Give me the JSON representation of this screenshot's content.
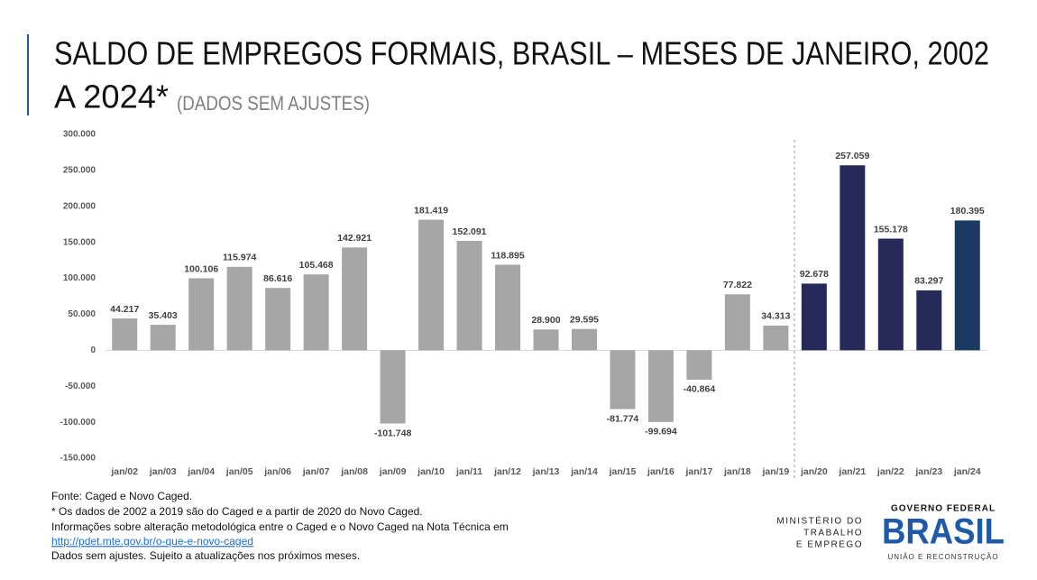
{
  "chart_data": {
    "type": "bar",
    "title": "SALDO DE EMPREGOS FORMAIS, BRASIL – MESES DE JANEIRO, 2002",
    "title_line2": "A 2024*",
    "subtitle": "(DADOS SEM AJUSTES)",
    "categories": [
      "jan/02",
      "jan/03",
      "jan/04",
      "jan/05",
      "jan/06",
      "jan/07",
      "jan/08",
      "jan/09",
      "jan/10",
      "jan/11",
      "jan/12",
      "jan/13",
      "jan/14",
      "jan/15",
      "jan/16",
      "jan/17",
      "jan/18",
      "jan/19",
      "jan/20",
      "jan/21",
      "jan/22",
      "jan/23",
      "jan/24"
    ],
    "values": [
      44217,
      35403,
      100106,
      115974,
      86616,
      105468,
      142921,
      -101748,
      181419,
      152091,
      118895,
      28900,
      29595,
      -81774,
      -99694,
      -40864,
      77822,
      34313,
      92678,
      257059,
      155178,
      83297,
      180395
    ],
    "value_labels": [
      "44.217",
      "35.403",
      "100.106",
      "115.974",
      "86.616",
      "105.468",
      "142.921",
      "-101.748",
      "181.419",
      "152.091",
      "118.895",
      "28.900",
      "29.595",
      "-81.774",
      "-99.694",
      "-40.864",
      "77.822",
      "34.313",
      "92.678",
      "257.059",
      "155.178",
      "83.297",
      "180.395"
    ],
    "colors": [
      "#a6a6a6",
      "#a6a6a6",
      "#a6a6a6",
      "#a6a6a6",
      "#a6a6a6",
      "#a6a6a6",
      "#a6a6a6",
      "#a6a6a6",
      "#a6a6a6",
      "#a6a6a6",
      "#a6a6a6",
      "#a6a6a6",
      "#a6a6a6",
      "#a6a6a6",
      "#a6a6a6",
      "#a6a6a6",
      "#a6a6a6",
      "#a6a6a6",
      "#252a5a",
      "#252a5a",
      "#252a5a",
      "#252a5a",
      "#1b3a63"
    ],
    "ylim": [
      -150000,
      300000
    ],
    "yticks": [
      {
        "value": -150000,
        "label": "-150.000"
      },
      {
        "value": -100000,
        "label": "-100.000"
      },
      {
        "value": -50000,
        "label": "-50.000"
      },
      0,
      {
        "value": 50000,
        "label": "50.000"
      },
      {
        "value": 100000,
        "label": "100.000"
      },
      {
        "value": 150000,
        "label": "150.000"
      },
      {
        "value": 200000,
        "label": "200.000"
      },
      {
        "value": 250000,
        "label": "250.000"
      },
      {
        "value": 300000,
        "label": "300.000"
      }
    ],
    "grid": false
  },
  "notes": [
    "Fonte: Caged e Novo Caged.",
    "* Os dados de 2002 a 2019 são do Caged e a partir de 2020 do Novo Caged.",
    "Informações sobre alteração metodológica entre o Caged e o Novo Caged na Nota Técnica em",
    "http://pdet.mte.gov.br/o-que-e-novo-caged",
    "Dados sem ajustes. Sujeito a atualizações nos próximos meses."
  ],
  "logos": {
    "ministry": [
      "MINISTÉRIO DO",
      "TRABALHO",
      "E EMPREGO"
    ],
    "government": "GOVERNO FEDERAL",
    "brand": "BRASIL",
    "tagline": "UNIÃO E RECONSTRUÇÃO"
  }
}
